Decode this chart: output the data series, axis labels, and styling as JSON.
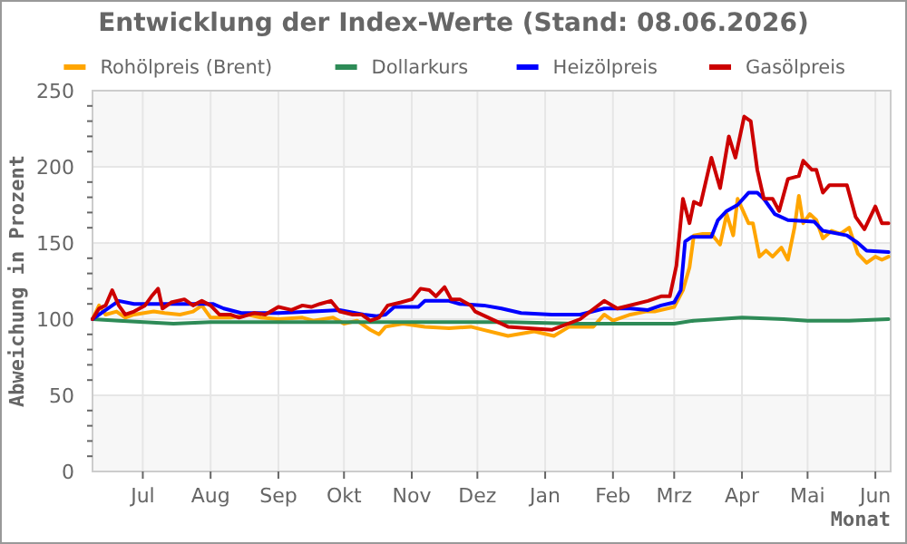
{
  "chart_data": {
    "type": "line",
    "title": "Entwicklung der Index-Werte (Stand: 08.06.2026)",
    "xlabel": "Monat",
    "ylabel": "Abweichung in Prozent",
    "xlim": [
      "2025-06-08",
      "2026-06-08"
    ],
    "xticks": [
      {
        "value": "2025-07-01",
        "label": "Jul"
      },
      {
        "value": "2025-08-01",
        "label": "Aug"
      },
      {
        "value": "2025-09-01",
        "label": "Sep"
      },
      {
        "value": "2025-10-01",
        "label": "Okt"
      },
      {
        "value": "2025-11-01",
        "label": "Nov"
      },
      {
        "value": "2025-12-01",
        "label": "Dez"
      },
      {
        "value": "2026-01-01",
        "label": "Jan"
      },
      {
        "value": "2026-02-01",
        "label": "Feb"
      },
      {
        "value": "2026-03-01",
        "label": "Mrz"
      },
      {
        "value": "2026-04-01",
        "label": "Apr"
      },
      {
        "value": "2026-05-01",
        "label": "Mai"
      },
      {
        "value": "2026-06-01",
        "label": "Jun"
      }
    ],
    "ylim": [
      0,
      250
    ],
    "yticks": [
      0,
      {
        "value": 10,
        "label": null
      },
      {
        "value": 20,
        "label": null
      },
      {
        "value": 30,
        "label": null
      },
      {
        "value": 40,
        "label": null
      },
      50,
      {
        "value": 60,
        "label": null
      },
      {
        "value": 70,
        "label": null
      },
      {
        "value": 80,
        "label": null
      },
      {
        "value": 90,
        "label": null
      },
      100,
      {
        "value": 110,
        "label": null
      },
      {
        "value": 120,
        "label": null
      },
      {
        "value": 130,
        "label": null
      },
      {
        "value": 140,
        "label": null
      },
      150,
      {
        "value": 160,
        "label": null
      },
      {
        "value": 170,
        "label": null
      },
      {
        "value": 180,
        "label": null
      },
      {
        "value": 190,
        "label": null
      },
      200,
      {
        "value": 210,
        "label": null
      },
      {
        "value": 220,
        "label": null
      },
      {
        "value": 230,
        "label": null
      },
      {
        "value": 240,
        "label": null
      },
      250
    ],
    "grid": true,
    "legend": "top",
    "marker": "none",
    "line_style": "solid",
    "series": [
      {
        "name": "Rohölpreis (Brent)",
        "color": "#ffa500",
        "x": [
          "2025-06-08",
          "2025-06-11",
          "2025-06-14",
          "2025-06-19",
          "2025-06-23",
          "2025-06-27",
          "2025-07-06",
          "2025-07-11",
          "2025-07-18",
          "2025-07-24",
          "2025-07-28",
          "2025-08-01",
          "2025-08-10",
          "2025-08-18",
          "2025-08-24",
          "2025-09-01",
          "2025-09-12",
          "2025-09-17",
          "2025-09-26",
          "2025-10-01",
          "2025-10-07",
          "2025-10-13",
          "2025-10-17",
          "2025-10-20",
          "2025-10-28",
          "2025-11-07",
          "2025-11-18",
          "2025-11-28",
          "2025-12-15",
          "2025-12-27",
          "2026-01-05",
          "2026-01-12",
          "2026-01-23",
          "2026-01-28",
          "2026-02-01",
          "2026-02-09",
          "2026-02-16",
          "2026-02-20",
          "2026-03-01",
          "2026-03-05",
          "2026-03-08",
          "2026-03-10",
          "2026-03-14",
          "2026-03-18",
          "2026-03-22",
          "2026-03-25",
          "2026-03-28",
          "2026-03-30",
          "2026-04-04",
          "2026-04-06",
          "2026-04-09",
          "2026-04-12",
          "2026-04-15",
          "2026-04-19",
          "2026-04-22",
          "2026-04-25",
          "2026-04-27",
          "2026-04-29",
          "2026-05-02",
          "2026-05-05",
          "2026-05-08",
          "2026-05-12",
          "2026-05-16",
          "2026-05-20",
          "2026-05-24",
          "2026-05-28",
          "2026-06-01",
          "2026-06-04",
          "2026-06-07"
        ],
        "values": [
          100,
          109,
          103,
          105,
          101,
          103,
          105,
          104,
          103,
          105,
          109,
          101,
          101,
          103,
          101,
          100,
          101,
          99,
          101,
          97,
          99,
          93,
          90,
          95,
          97,
          95,
          94,
          95,
          89,
          92,
          89,
          95,
          95,
          103,
          99,
          103,
          105,
          105,
          108,
          119,
          134,
          155,
          156,
          156,
          149,
          169,
          155,
          179,
          163,
          163,
          141,
          145,
          141,
          147,
          139,
          160,
          181,
          163,
          169,
          165,
          153,
          158,
          156,
          160,
          143,
          137,
          141,
          139,
          141
        ]
      },
      {
        "name": "Dollarkurs",
        "color": "#2e8b57",
        "x": [
          "2025-06-08",
          "2025-06-20",
          "2025-07-15",
          "2025-08-01",
          "2025-08-20",
          "2025-09-15",
          "2025-10-15",
          "2025-11-15",
          "2025-12-15",
          "2026-01-15",
          "2026-02-15",
          "2026-03-01",
          "2026-03-10",
          "2026-04-01",
          "2026-04-20",
          "2026-05-01",
          "2026-05-20",
          "2026-06-07"
        ],
        "values": [
          100,
          99,
          97,
          98,
          98,
          98,
          98,
          98,
          98,
          97,
          97,
          97,
          99,
          101,
          100,
          99,
          99,
          100
        ]
      },
      {
        "name": "Heizölpreis",
        "color": "#0000ff",
        "x": [
          "2025-06-08",
          "2025-06-13",
          "2025-06-20",
          "2025-06-27",
          "2025-07-11",
          "2025-08-02",
          "2025-08-07",
          "2025-08-15",
          "2025-09-01",
          "2025-09-17",
          "2025-09-29",
          "2025-10-10",
          "2025-10-16",
          "2025-10-20",
          "2025-10-24",
          "2025-11-04",
          "2025-11-07",
          "2025-11-18",
          "2025-11-23",
          "2025-12-04",
          "2025-12-12",
          "2025-12-21",
          "2026-01-04",
          "2026-01-17",
          "2026-01-28",
          "2026-02-09",
          "2026-02-17",
          "2026-02-23",
          "2026-03-01",
          "2026-03-04",
          "2026-03-06",
          "2026-03-09",
          "2026-03-18",
          "2026-03-21",
          "2026-03-25",
          "2026-03-30",
          "2026-04-04",
          "2026-04-08",
          "2026-04-11",
          "2026-04-16",
          "2026-04-22",
          "2026-05-04",
          "2026-05-08",
          "2026-05-19",
          "2026-05-24",
          "2026-05-28",
          "2026-06-07"
        ],
        "values": [
          100,
          105,
          112,
          110,
          110,
          110,
          107,
          104,
          104,
          105,
          106,
          103,
          102,
          103,
          108,
          108,
          112,
          112,
          110,
          109,
          107,
          104,
          103,
          103,
          107,
          107,
          106,
          109,
          111,
          119,
          151,
          154,
          154,
          165,
          171,
          175,
          183,
          183,
          179,
          169,
          165,
          164,
          158,
          155,
          150,
          145,
          144
        ]
      },
      {
        "name": "Gasölpreis",
        "color": "#cc0000",
        "x": [
          "2025-06-08",
          "2025-06-11",
          "2025-06-14",
          "2025-06-17",
          "2025-06-20",
          "2025-06-23",
          "2025-06-27",
          "2025-07-02",
          "2025-07-05",
          "2025-07-08",
          "2025-07-10",
          "2025-07-14",
          "2025-07-20",
          "2025-07-24",
          "2025-07-28",
          "2025-08-01",
          "2025-08-05",
          "2025-08-10",
          "2025-08-14",
          "2025-08-21",
          "2025-08-26",
          "2025-09-01",
          "2025-09-07",
          "2025-09-12",
          "2025-09-16",
          "2025-09-20",
          "2025-09-25",
          "2025-09-29",
          "2025-10-05",
          "2025-10-09",
          "2025-10-13",
          "2025-10-17",
          "2025-10-21",
          "2025-10-27",
          "2025-11-01",
          "2025-11-05",
          "2025-11-09",
          "2025-11-12",
          "2025-11-16",
          "2025-11-19",
          "2025-11-23",
          "2025-11-28",
          "2025-11-30",
          "2025-12-15",
          "2026-01-04",
          "2026-01-17",
          "2026-01-28",
          "2026-02-03",
          "2026-02-17",
          "2026-02-23",
          "2026-02-27",
          "2026-03-02",
          "2026-03-05",
          "2026-03-08",
          "2026-03-10",
          "2026-03-13",
          "2026-03-18",
          "2026-03-22",
          "2026-03-26",
          "2026-03-29",
          "2026-04-02",
          "2026-04-05",
          "2026-04-08",
          "2026-04-11",
          "2026-04-15",
          "2026-04-18",
          "2026-04-22",
          "2026-04-27",
          "2026-04-29",
          "2026-05-03",
          "2026-05-05",
          "2026-05-08",
          "2026-05-11",
          "2026-05-16",
          "2026-05-19",
          "2026-05-23",
          "2026-05-27",
          "2026-06-01",
          "2026-06-04",
          "2026-06-07"
        ],
        "values": [
          100,
          107,
          109,
          119,
          109,
          103,
          105,
          109,
          115,
          120,
          107,
          111,
          113,
          109,
          112,
          109,
          103,
          103,
          101,
          104,
          103,
          108,
          106,
          109,
          108,
          110,
          112,
          105,
          103,
          103,
          99,
          101,
          109,
          111,
          113,
          120,
          119,
          115,
          121,
          113,
          113,
          109,
          105,
          95,
          93,
          100,
          112,
          107,
          112,
          115,
          115,
          135,
          179,
          163,
          177,
          175,
          206,
          186,
          220,
          206,
          233,
          230,
          198,
          179,
          179,
          171,
          192,
          194,
          204,
          198,
          198,
          183,
          188,
          188,
          188,
          167,
          159,
          174,
          163,
          163
        ]
      }
    ]
  }
}
